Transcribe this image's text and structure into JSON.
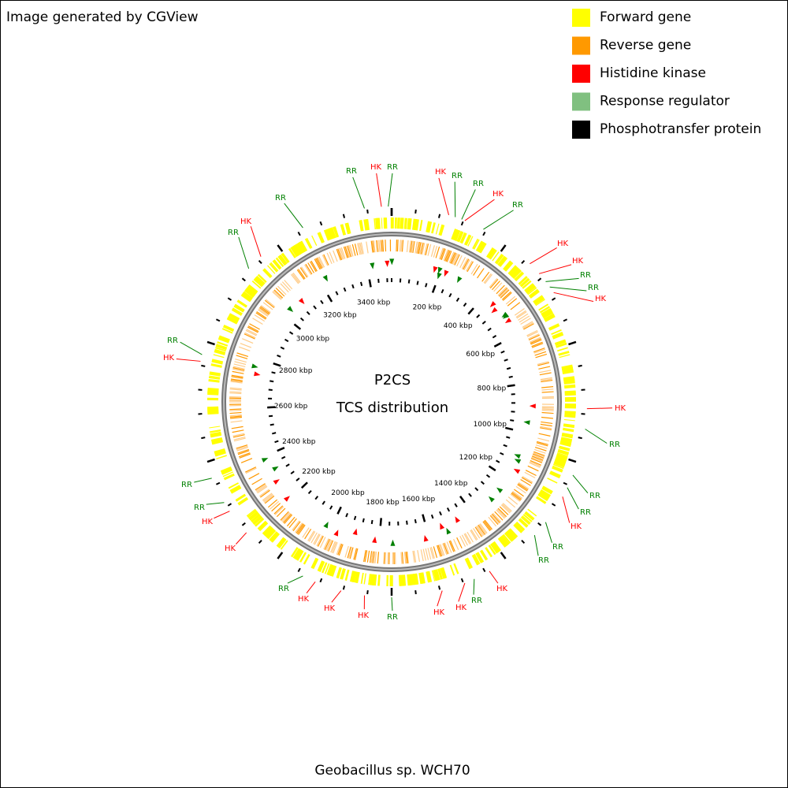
{
  "credit": "Image generated by CGView",
  "legend": [
    {
      "label": "Forward gene",
      "color": "#ffff00"
    },
    {
      "label": "Reverse gene",
      "color": "#ff9900"
    },
    {
      "label": "Histidine kinase",
      "color": "#ff0000"
    },
    {
      "label": "Response regulator",
      "color": "#80c080"
    },
    {
      "label": "Phosphotransfer protein",
      "color": "#000000"
    }
  ],
  "center_title": [
    "P2CS",
    "TCS distribution"
  ],
  "tick_labels": [
    "200 kbp",
    "400 kbp",
    "600 kbp",
    "800 kbp",
    "1000 kbp",
    "1200 kbp",
    "1400 kbp",
    "1600 kbp",
    "1800 kbp",
    "2000 kbp",
    "2200 kbp",
    "2400 kbp",
    "2600 kbp",
    "2800 kbp",
    "3000 kbp",
    "3200 kbp",
    "3400 kbp"
  ],
  "features": [
    {
      "label": "RR",
      "color": "#008000"
    },
    {
      "label": "HK",
      "color": "#ff0000"
    },
    {
      "label": "RR",
      "color": "#008000"
    },
    {
      "label": "HK",
      "color": "#ff0000"
    },
    {
      "label": "RR",
      "color": "#008000"
    },
    {
      "label": "RR",
      "color": "#008000"
    },
    {
      "label": "HK",
      "color": "#ff0000"
    },
    {
      "label": "RR",
      "color": "#008000"
    },
    {
      "label": "HK",
      "color": "#ff0000"
    },
    {
      "label": "HK",
      "color": "#ff0000"
    },
    {
      "label": "RR",
      "color": "#008000"
    },
    {
      "label": "RR",
      "color": "#008000"
    },
    {
      "label": "HK",
      "color": "#ff0000"
    },
    {
      "label": "HK",
      "color": "#ff0000"
    },
    {
      "label": "RR",
      "color": "#008000"
    },
    {
      "label": "RR",
      "color": "#008000"
    },
    {
      "label": "RR",
      "color": "#008000"
    },
    {
      "label": "HK",
      "color": "#ff0000"
    },
    {
      "label": "RR",
      "color": "#008000"
    },
    {
      "label": "RR",
      "color": "#008000"
    },
    {
      "label": "HK",
      "color": "#ff0000"
    },
    {
      "label": "RR",
      "color": "#008000"
    },
    {
      "label": "HK",
      "color": "#ff0000"
    },
    {
      "label": "HK",
      "color": "#ff0000"
    },
    {
      "label": "RR",
      "color": "#008000"
    },
    {
      "label": "HK",
      "color": "#ff0000"
    },
    {
      "label": "HK",
      "color": "#ff0000"
    },
    {
      "label": "HK",
      "color": "#ff0000"
    },
    {
      "label": "RR",
      "color": "#008000"
    },
    {
      "label": "HK",
      "color": "#ff0000"
    },
    {
      "label": "HK",
      "color": "#ff0000"
    },
    {
      "label": "RR",
      "color": "#008000"
    },
    {
      "label": "RR",
      "color": "#008000"
    },
    {
      "label": "HK",
      "color": "#ff0000"
    },
    {
      "label": "RR",
      "color": "#008000"
    },
    {
      "label": "RR",
      "color": "#008000"
    },
    {
      "label": "HK",
      "color": "#ff0000"
    },
    {
      "label": "RR",
      "color": "#008000"
    }
  ],
  "organism": "Geobacillus sp. WCH70"
}
